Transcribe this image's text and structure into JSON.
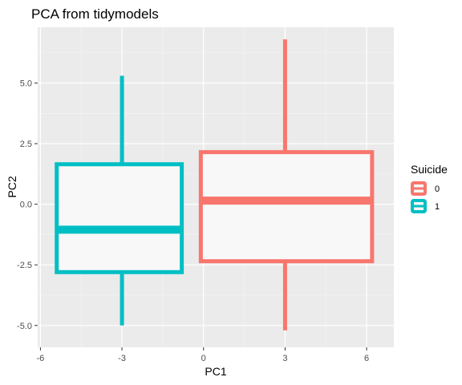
{
  "chart_data": {
    "type": "boxplot",
    "title": "PCA from tidymodels",
    "xlabel": "PC1",
    "ylabel": "PC2",
    "xlim": [
      -6.1,
      7.0
    ],
    "ylim": [
      -5.9,
      7.3
    ],
    "x_ticks": [
      -6,
      -3,
      0,
      3,
      6
    ],
    "x_tick_labels": [
      "-6",
      "-3",
      "0",
      "3",
      "6"
    ],
    "y_ticks": [
      -5.0,
      -2.5,
      0.0,
      2.5,
      5.0
    ],
    "y_tick_labels": [
      "-5.0",
      "-2.5",
      "0.0",
      "2.5",
      "5.0"
    ],
    "legend": {
      "title": "Suicide",
      "position": "right"
    },
    "panel_color": "#ebebeb",
    "series": [
      {
        "name": "0",
        "color": "#f8766d",
        "x_left": -0.1,
        "x_right": 6.2,
        "x_center": 3.0,
        "whisker_low": -5.2,
        "q1": -2.35,
        "median": 0.15,
        "q3": 2.15,
        "whisker_high": 6.8
      },
      {
        "name": "1",
        "color": "#00bfc4",
        "x_left": -5.4,
        "x_right": -0.8,
        "x_center": -3.0,
        "whisker_low": -5.0,
        "q1": -2.8,
        "median": -1.05,
        "q3": 1.65,
        "whisker_high": 5.3
      }
    ]
  }
}
